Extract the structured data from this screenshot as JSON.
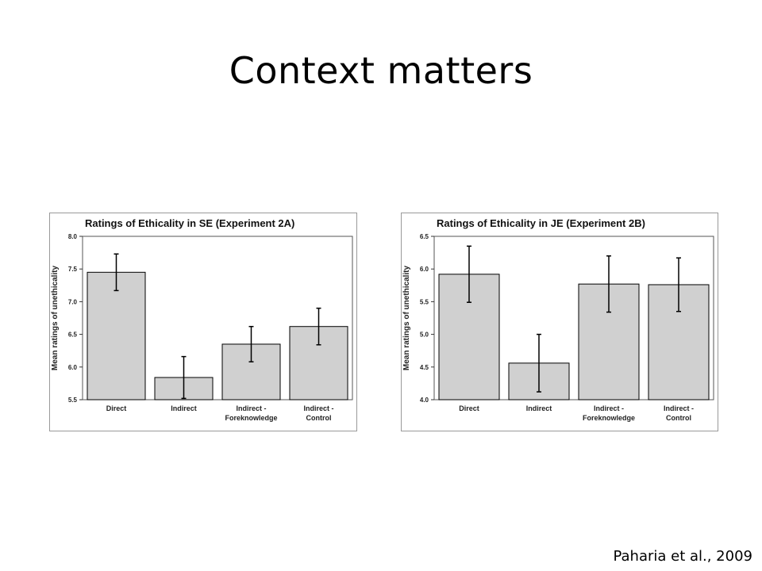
{
  "slide": {
    "title": "Context matters",
    "citation": "Paharia et al., 2009"
  },
  "colors": {
    "bar_fill": "#d0d0d0",
    "bar_stroke": "#000000",
    "frame": "#999999"
  },
  "chart_data": [
    {
      "type": "bar",
      "title": "Ratings of Ethicality in SE (Experiment 2A)",
      "xlabel": "",
      "ylabel": "Mean ratings of unethicality",
      "categories": [
        [
          "Direct"
        ],
        [
          "Indirect"
        ],
        [
          "Indirect -",
          "Foreknowledge"
        ],
        [
          "Indirect -",
          "Control"
        ]
      ],
      "values": [
        7.45,
        5.84,
        6.35,
        6.62
      ],
      "error": [
        0.28,
        0.32,
        0.27,
        0.28
      ],
      "ylim": [
        5.5,
        8.0
      ],
      "yticks": [
        "5.5",
        "6.0",
        "6.5",
        "7.0",
        "7.5",
        "8.0"
      ],
      "grid": false
    },
    {
      "type": "bar",
      "title": "Ratings of Ethicality in JE (Experiment 2B)",
      "xlabel": "",
      "ylabel": "Mean ratings of unethicality",
      "categories": [
        [
          "Direct"
        ],
        [
          "Indirect"
        ],
        [
          "Indirect -",
          "Foreknowledge"
        ],
        [
          "Indirect -",
          "Control"
        ]
      ],
      "values": [
        5.92,
        4.56,
        5.77,
        5.76
      ],
      "error": [
        0.43,
        0.44,
        0.43,
        0.41
      ],
      "ylim": [
        4.0,
        6.5
      ],
      "yticks": [
        "4.0",
        "4.5",
        "5.0",
        "5.5",
        "6.0",
        "6.5"
      ],
      "grid": false
    }
  ]
}
